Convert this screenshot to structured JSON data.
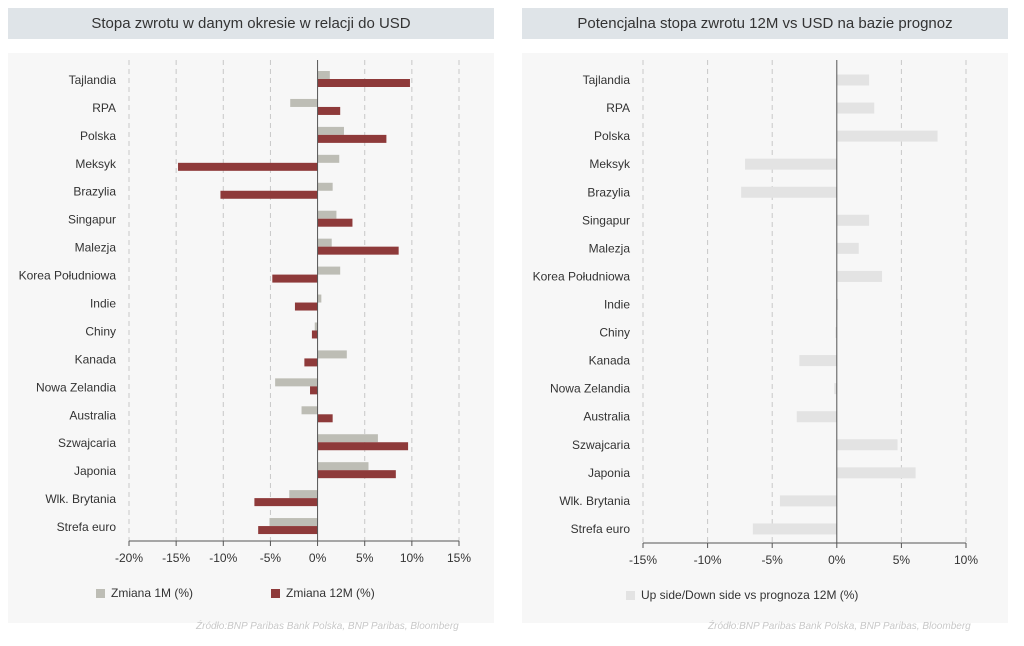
{
  "left_panel": {
    "title": "Stopa zwrotu w danym okresie w relacji do USD",
    "source": "Źródło:BNP Paribas Bank Polska, BNP Paribas, Bloomberg"
  },
  "right_panel": {
    "title": "Potencjalna stopa zwrotu 12M vs USD na bazie prognoz",
    "source": "Źródło:BNP Paribas Bank Polska, BNP Paribas, Bloomberg"
  },
  "colors": {
    "series_1m": "#bdbdb5",
    "series_12m": "#8e3a3a",
    "series_updown": "#e3e3e3",
    "grid": "#c8c8c8",
    "axis": "#555555"
  },
  "chart_data": [
    {
      "type": "bar",
      "orientation": "horizontal",
      "title": "Stopa zwrotu w danym okresie w relacji do USD",
      "categories": [
        "Tajlandia",
        "RPA",
        "Polska",
        "Meksyk",
        "Brazylia",
        "Singapur",
        "Malezja",
        "Korea Południowa",
        "Indie",
        "Chiny",
        "Kanada",
        "Nowa Zelandia",
        "Australia",
        "Szwajcaria",
        "Japonia",
        "Wlk. Brytania",
        "Strefa euro"
      ],
      "series": [
        {
          "name": "Zmiana 1M (%)",
          "values": [
            1.3,
            -2.9,
            2.8,
            2.3,
            1.6,
            2.0,
            1.5,
            2.4,
            0.4,
            -0.3,
            3.1,
            -4.5,
            -1.7,
            6.4,
            5.4,
            -3.0,
            -5.1
          ]
        },
        {
          "name": "Zmiana 12M (%)",
          "values": [
            9.8,
            2.4,
            7.3,
            -14.8,
            -10.3,
            3.7,
            8.6,
            -4.8,
            -2.4,
            -0.6,
            -1.4,
            -0.8,
            1.6,
            9.6,
            8.3,
            -6.7,
            -6.3
          ]
        }
      ],
      "xlim": [
        -20,
        15
      ],
      "tick_labels": [
        "-20%",
        "-15%",
        "-10%",
        "-5%",
        "0%",
        "5%",
        "10%",
        "15%"
      ],
      "tick_values": [
        -20,
        -15,
        -10,
        -5,
        0,
        5,
        10,
        15
      ],
      "legend_position": "bottom",
      "grid": true
    },
    {
      "type": "bar",
      "orientation": "horizontal",
      "title": "Potencjalna stopa zwrotu 12M vs USD na bazie prognoz",
      "categories": [
        "Tajlandia",
        "RPA",
        "Polska",
        "Meksyk",
        "Brazylia",
        "Singapur",
        "Malezja",
        "Korea Południowa",
        "Indie",
        "Chiny",
        "Kanada",
        "Nowa Zelandia",
        "Australia",
        "Szwajcaria",
        "Japonia",
        "Wlk. Brytania",
        "Strefa euro"
      ],
      "series": [
        {
          "name": "Up side/Down side vs prognoza 12M (%)",
          "values": [
            2.5,
            2.9,
            7.8,
            -7.1,
            -7.4,
            2.5,
            1.7,
            3.5,
            0.1,
            -0.1,
            -2.9,
            -0.2,
            -3.1,
            4.7,
            6.1,
            -4.4,
            -6.5
          ]
        }
      ],
      "xlim": [
        -15,
        10
      ],
      "tick_labels": [
        "-15%",
        "-10%",
        "-5%",
        "0%",
        "5%",
        "10%"
      ],
      "tick_values": [
        -15,
        -10,
        -5,
        0,
        5,
        10
      ],
      "legend_position": "bottom",
      "grid": true
    }
  ]
}
